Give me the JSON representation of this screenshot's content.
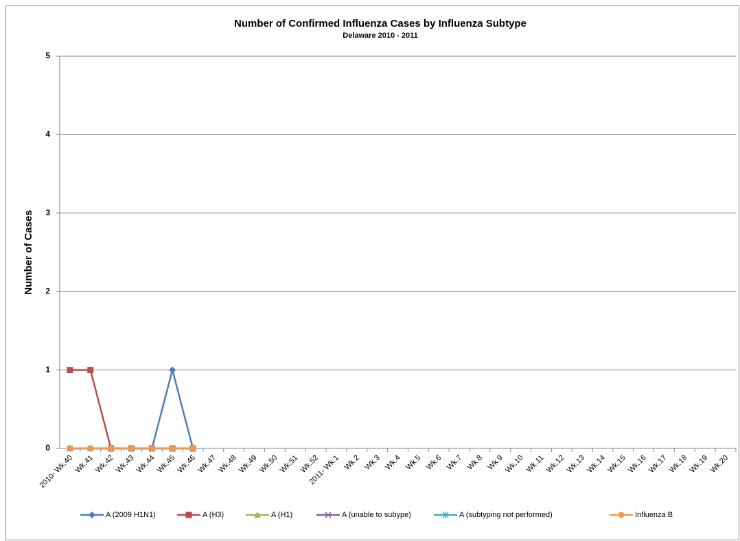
{
  "chart_data": {
    "type": "line",
    "title": "Number of Confirmed Influenza Cases by Influenza Subtype",
    "subtitle": "Delaware 2010 - 2011",
    "y_label": "Number of Cases",
    "categories": [
      "2010- Wk.40",
      "Wk.41",
      "Wk.42",
      "Wk.43",
      "Wk.44",
      "Wk.45",
      "Wk.46",
      "Wk.47",
      "Wk.48",
      "Wk.49",
      "Wk.50",
      "Wk.51",
      "Wk.52",
      "2011- Wk.1",
      "Wk.2",
      "Wk.3",
      "Wk.4",
      "Wk.5",
      "Wk.6",
      "Wk.7",
      "Wk.8",
      "Wk.9",
      "Wk.10",
      "Wk.11",
      "Wk.12",
      "Wk.13",
      "Wk.14",
      "Wk.15",
      "Wk.16",
      "Wk.17",
      "Wk.18",
      "Wk.19",
      "Wk.20"
    ],
    "series": [
      {
        "name": "A (2009 H1N1)",
        "color": "#4a7ebb",
        "marker": "diamond",
        "values": [
          0,
          0,
          0,
          0,
          0,
          1,
          0,
          null,
          null,
          null,
          null,
          null,
          null,
          null,
          null,
          null,
          null,
          null,
          null,
          null,
          null,
          null,
          null,
          null,
          null,
          null,
          null,
          null,
          null,
          null,
          null,
          null,
          null
        ]
      },
      {
        "name": "A (H3)",
        "color": "#be4b48",
        "marker": "square",
        "values": [
          1,
          1,
          0,
          0,
          0,
          0,
          0,
          null,
          null,
          null,
          null,
          null,
          null,
          null,
          null,
          null,
          null,
          null,
          null,
          null,
          null,
          null,
          null,
          null,
          null,
          null,
          null,
          null,
          null,
          null,
          null,
          null,
          null
        ]
      },
      {
        "name": "A (H1)",
        "color": "#98b954",
        "marker": "triangle",
        "values": [
          0,
          0,
          0,
          0,
          0,
          0,
          0,
          null,
          null,
          null,
          null,
          null,
          null,
          null,
          null,
          null,
          null,
          null,
          null,
          null,
          null,
          null,
          null,
          null,
          null,
          null,
          null,
          null,
          null,
          null,
          null,
          null,
          null
        ]
      },
      {
        "name": "A (unable to subype)",
        "color": "#7d60a0",
        "marker": "x",
        "values": [
          0,
          0,
          0,
          0,
          0,
          0,
          0,
          null,
          null,
          null,
          null,
          null,
          null,
          null,
          null,
          null,
          null,
          null,
          null,
          null,
          null,
          null,
          null,
          null,
          null,
          null,
          null,
          null,
          null,
          null,
          null,
          null,
          null
        ]
      },
      {
        "name": "A (subtyping not performed)",
        "color": "#46aac5",
        "marker": "star",
        "values": [
          0,
          0,
          0,
          0,
          0,
          0,
          0,
          null,
          null,
          null,
          null,
          null,
          null,
          null,
          null,
          null,
          null,
          null,
          null,
          null,
          null,
          null,
          null,
          null,
          null,
          null,
          null,
          null,
          null,
          null,
          null,
          null,
          null
        ]
      },
      {
        "name": "Influenza B",
        "color": "#f79646",
        "marker": "circle",
        "values": [
          0,
          0,
          0,
          0,
          0,
          0,
          0,
          null,
          null,
          null,
          null,
          null,
          null,
          null,
          null,
          null,
          null,
          null,
          null,
          null,
          null,
          null,
          null,
          null,
          null,
          null,
          null,
          null,
          null,
          null,
          null,
          null,
          null
        ]
      }
    ],
    "ylim": [
      0,
      5
    ],
    "yticks": [
      0,
      1,
      2,
      3,
      4,
      5
    ],
    "grid": true,
    "legend": "bottom"
  }
}
